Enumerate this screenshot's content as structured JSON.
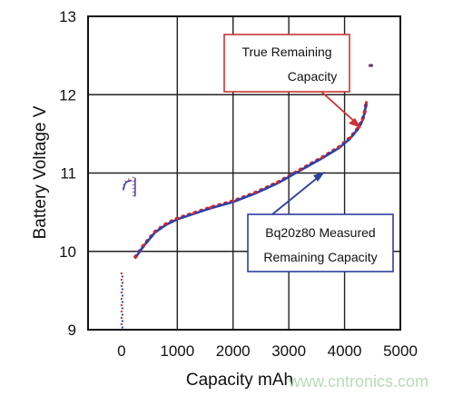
{
  "chart_data": {
    "type": "line",
    "xlabel": "Capacity mAh",
    "ylabel": "Battery Voltage V",
    "xlim": [
      -600,
      5000
    ],
    "ylim": [
      9,
      13
    ],
    "x_ticks": [
      "0",
      "1000",
      "2000",
      "3000",
      "4000",
      "5000"
    ],
    "y_ticks": [
      "9",
      "10",
      "11",
      "12",
      "13"
    ],
    "grid": true,
    "series": [
      {
        "name": "True Remaining Capacity",
        "color": "#d42a2a",
        "x": [
          250,
          400,
          600,
          800,
          1000,
          1300,
          1600,
          2000,
          2400,
          2800,
          3200,
          3600,
          3900,
          4100,
          4250,
          4320,
          4360,
          4390
        ],
        "y": [
          9.93,
          10.08,
          10.25,
          10.35,
          10.42,
          10.49,
          10.56,
          10.64,
          10.75,
          10.88,
          11.04,
          11.2,
          11.33,
          11.45,
          11.58,
          11.68,
          11.78,
          11.9
        ]
      },
      {
        "name": "Bq20z80 Measured Remaining Capacity",
        "color": "#3040a8",
        "x": [
          250,
          400,
          600,
          800,
          1000,
          1300,
          1600,
          2000,
          2400,
          2800,
          3200,
          3600,
          3900,
          4100,
          4250,
          4320,
          4360,
          4390
        ],
        "y": [
          9.92,
          10.07,
          10.24,
          10.34,
          10.41,
          10.48,
          10.55,
          10.63,
          10.74,
          10.87,
          11.03,
          11.19,
          11.32,
          11.44,
          11.57,
          11.67,
          11.77,
          11.89
        ]
      }
    ],
    "annotations": [
      {
        "lines": [
          "True Remaining",
          "Capacity"
        ],
        "target": "True Remaining Capacity"
      },
      {
        "lines": [
          "Bq20z80 Measured",
          "Remaining Capacity"
        ],
        "target": "Bq20z80 Measured Remaining Capacity"
      }
    ]
  },
  "watermark": "www.cntronics.com"
}
